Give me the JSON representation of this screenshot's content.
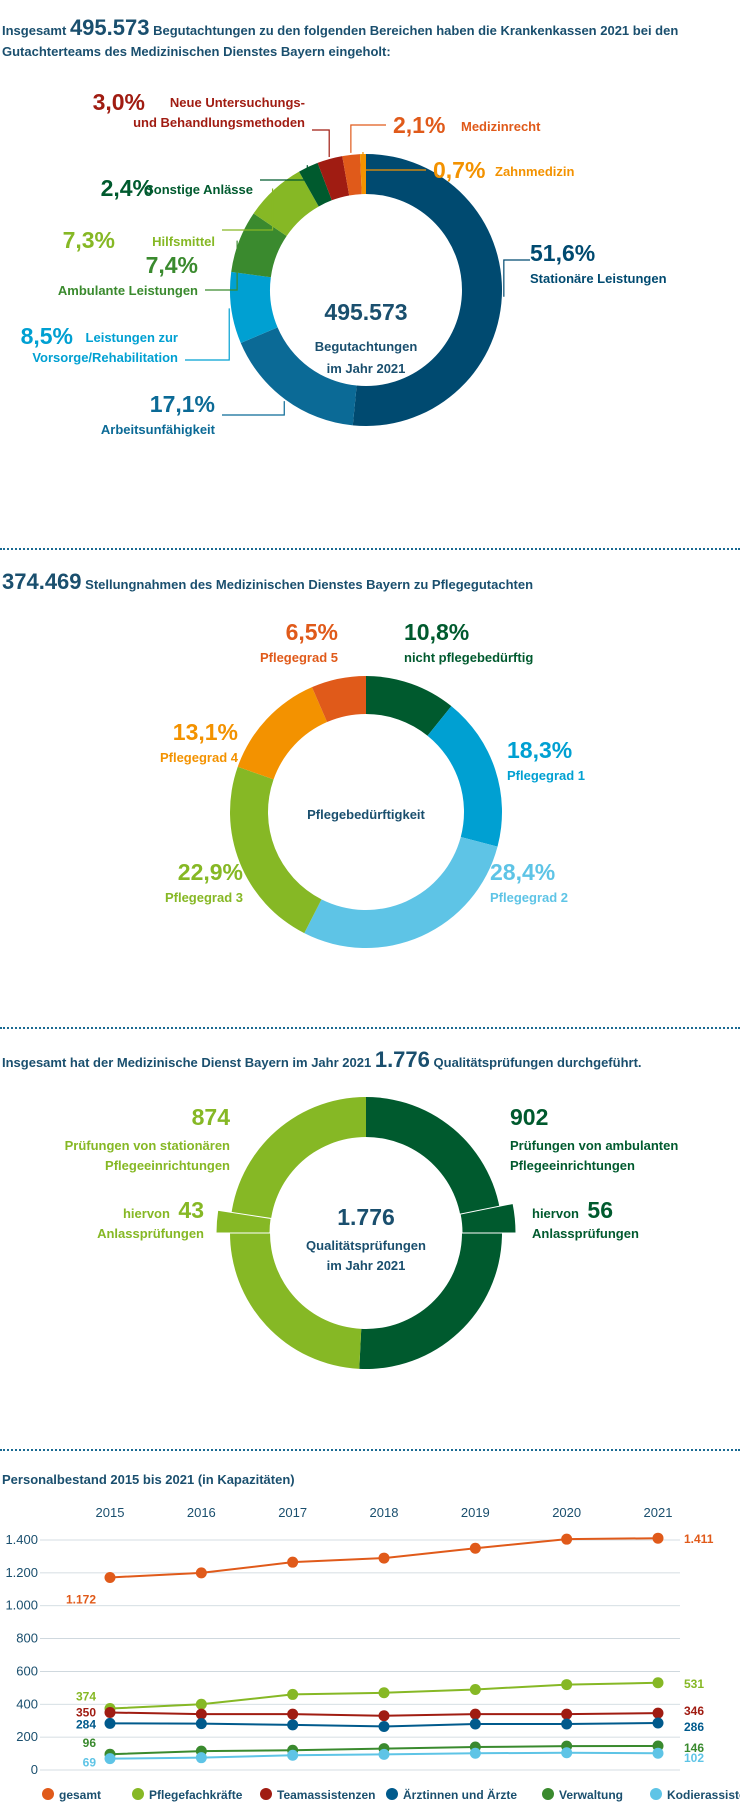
{
  "section1": {
    "intro": "Insgesamt",
    "total": "495.573",
    "text_line1": "Begutachtungen zu den folgenden Bereichen haben die Krankenkassen 2021 bei den",
    "text_line2": "Gutachterteams des Medizinischen Dienstes Bayern eingeholt:",
    "center_value": "495.573",
    "center_line1": "Begutachtungen",
    "center_line2": "im Jahr 2021"
  },
  "section2": {
    "total": "374.469",
    "text": "Stellungnahmen des Medizinischen Dienstes Bayern zu Pflegegutachten",
    "center_label": "Pflegebedürftigkeit"
  },
  "section3": {
    "text_before": "Insgesamt hat der Medizinische Dienst Bayern im Jahr 2021",
    "total": "1.776",
    "text_after": "Qualitätsprüfungen durchgeführt.",
    "center_value": "1.776",
    "center_line1": "Qualitätsprüfungen",
    "center_line2": "im Jahr 2021",
    "left_value": "874",
    "left_line1": "Prüfungen von stationären",
    "left_line2": "Pflegeeinrichtungen",
    "right_value": "902",
    "right_line1": "Prüfungen von ambulanten",
    "right_line2": "Pflegeeinrichtungen",
    "left_sub_prefix": "hiervon",
    "left_sub_value": "43",
    "left_sub_label": "Anlassprüfungen",
    "right_sub_prefix": "hiervon",
    "right_sub_value": "56",
    "right_sub_label": "Anlassprüfungen"
  },
  "section4": {
    "title": "Personalbestand 2015 bis 2021 (in Kapazitäten)"
  },
  "colors": {
    "dark_blue": "#004a70",
    "mid_blue": "#0b6a96",
    "light_blue": "#00a0d2",
    "sky_blue": "#5ec4e6",
    "dark_green": "#005a2e",
    "mid_green": "#3a8a2e",
    "light_green": "#86b825",
    "orange": "#f39200",
    "red_orange": "#e05a1a",
    "dark_red": "#a01c12",
    "text_blue": "#1a4f6e"
  },
  "chart_data": [
    {
      "type": "pie",
      "variant": "donut",
      "labels": [
        "Stationäre Leistungen",
        "Arbeitsunfähigkeit",
        "Leistungen zur Vorsorge/Rehabilitation",
        "Ambulante Leistungen",
        "Hilfsmittel",
        "Sonstige Anlässe",
        "Neue Untersuchungs- und Behandlungsmethoden",
        "Medizinrecht",
        "Zahnmedizin"
      ],
      "label_lines": [
        [
          "Stationäre Leistungen"
        ],
        [
          "Arbeitsunfähigkeit"
        ],
        [
          "Vorsorge/Rehabilitation"
        ],
        [
          "Ambulante Leistungen"
        ],
        [
          "Hilfsmittel"
        ],
        [
          "Sonstige Anlässe"
        ],
        [
          "Neue Untersuchungs-",
          "und Behandlungsmethoden"
        ],
        [
          "Medizinrecht"
        ],
        [
          "Zahnmedizin"
        ]
      ],
      "label_prefix": [
        "",
        "",
        "Leistungen zur",
        "",
        "",
        "",
        "",
        "",
        ""
      ],
      "values": [
        51.6,
        17.1,
        8.5,
        7.4,
        7.3,
        2.4,
        3.0,
        2.1,
        0.7
      ],
      "value_labels": [
        "51,6%",
        "17,1%",
        "8,5%",
        "7,4%",
        "7,3%",
        "2,4%",
        "3,0%",
        "2,1%",
        "0,7%"
      ],
      "colors": [
        "#004a70",
        "#0b6a96",
        "#00a0d2",
        "#3a8a2e",
        "#86b825",
        "#005a2e",
        "#a01c12",
        "#e05a1a",
        "#f39200"
      ]
    },
    {
      "type": "pie",
      "variant": "donut",
      "labels": [
        "nicht pflegebedürftig",
        "Pflegegrad 1",
        "Pflegegrad 2",
        "Pflegegrad 3",
        "Pflegegrad 4",
        "Pflegegrad 5"
      ],
      "values": [
        10.8,
        18.3,
        28.4,
        22.9,
        13.1,
        6.5
      ],
      "value_labels": [
        "10,8%",
        "18,3%",
        "28,4%",
        "22,9%",
        "13,1%",
        "6,5%"
      ],
      "colors": [
        "#005a2e",
        "#00a0d2",
        "#5ec4e6",
        "#86b825",
        "#f39200",
        "#e05a1a"
      ]
    },
    {
      "type": "pie",
      "variant": "donut",
      "labels": [
        "Prüfungen von ambulanten Pflegeeinrichtungen",
        "Prüfungen von stationären Pflegeeinrichtungen"
      ],
      "values": [
        902,
        874
      ],
      "sub_values": [
        56,
        43
      ],
      "colors": [
        "#005a2e",
        "#86b825"
      ]
    },
    {
      "type": "line",
      "x": [
        "2015",
        "2016",
        "2017",
        "2018",
        "2019",
        "2020",
        "2021"
      ],
      "ylim": [
        0,
        1400
      ],
      "yticks": [
        0,
        200,
        400,
        600,
        800,
        1000,
        1200,
        1400
      ],
      "ytick_labels": [
        "0",
        "200",
        "400",
        "600",
        "800",
        "1.000",
        "1.200",
        "1.400"
      ],
      "grid": "horizontal",
      "legend": "bottom",
      "series": [
        {
          "name": "gesamt",
          "color": "#e05a1a",
          "values": [
            1172,
            1200,
            1265,
            1290,
            1350,
            1405,
            1411
          ],
          "start_label": "1.172",
          "end_label": "1.411"
        },
        {
          "name": "Pflegefachkräfte",
          "color": "#86b825",
          "values": [
            374,
            400,
            460,
            470,
            490,
            520,
            531
          ],
          "start_label": "374",
          "end_label": "531"
        },
        {
          "name": "Teamassistenzen",
          "color": "#a01c12",
          "values": [
            350,
            340,
            340,
            330,
            340,
            340,
            346
          ],
          "start_label": "350",
          "end_label": "346"
        },
        {
          "name": "Ärztinnen und Ärzte",
          "color": "#005a8c",
          "values": [
            284,
            282,
            275,
            265,
            280,
            280,
            286
          ],
          "start_label": "284",
          "end_label": "286"
        },
        {
          "name": "Verwaltung",
          "color": "#3a8a2e",
          "values": [
            96,
            115,
            120,
            130,
            140,
            145,
            146
          ],
          "start_label": "96",
          "end_label": "146"
        },
        {
          "name": "Kodierassistenzen",
          "color": "#5ec4e6",
          "values": [
            69,
            75,
            90,
            95,
            102,
            105,
            102
          ],
          "start_label": "69",
          "end_label": "102"
        }
      ]
    }
  ]
}
